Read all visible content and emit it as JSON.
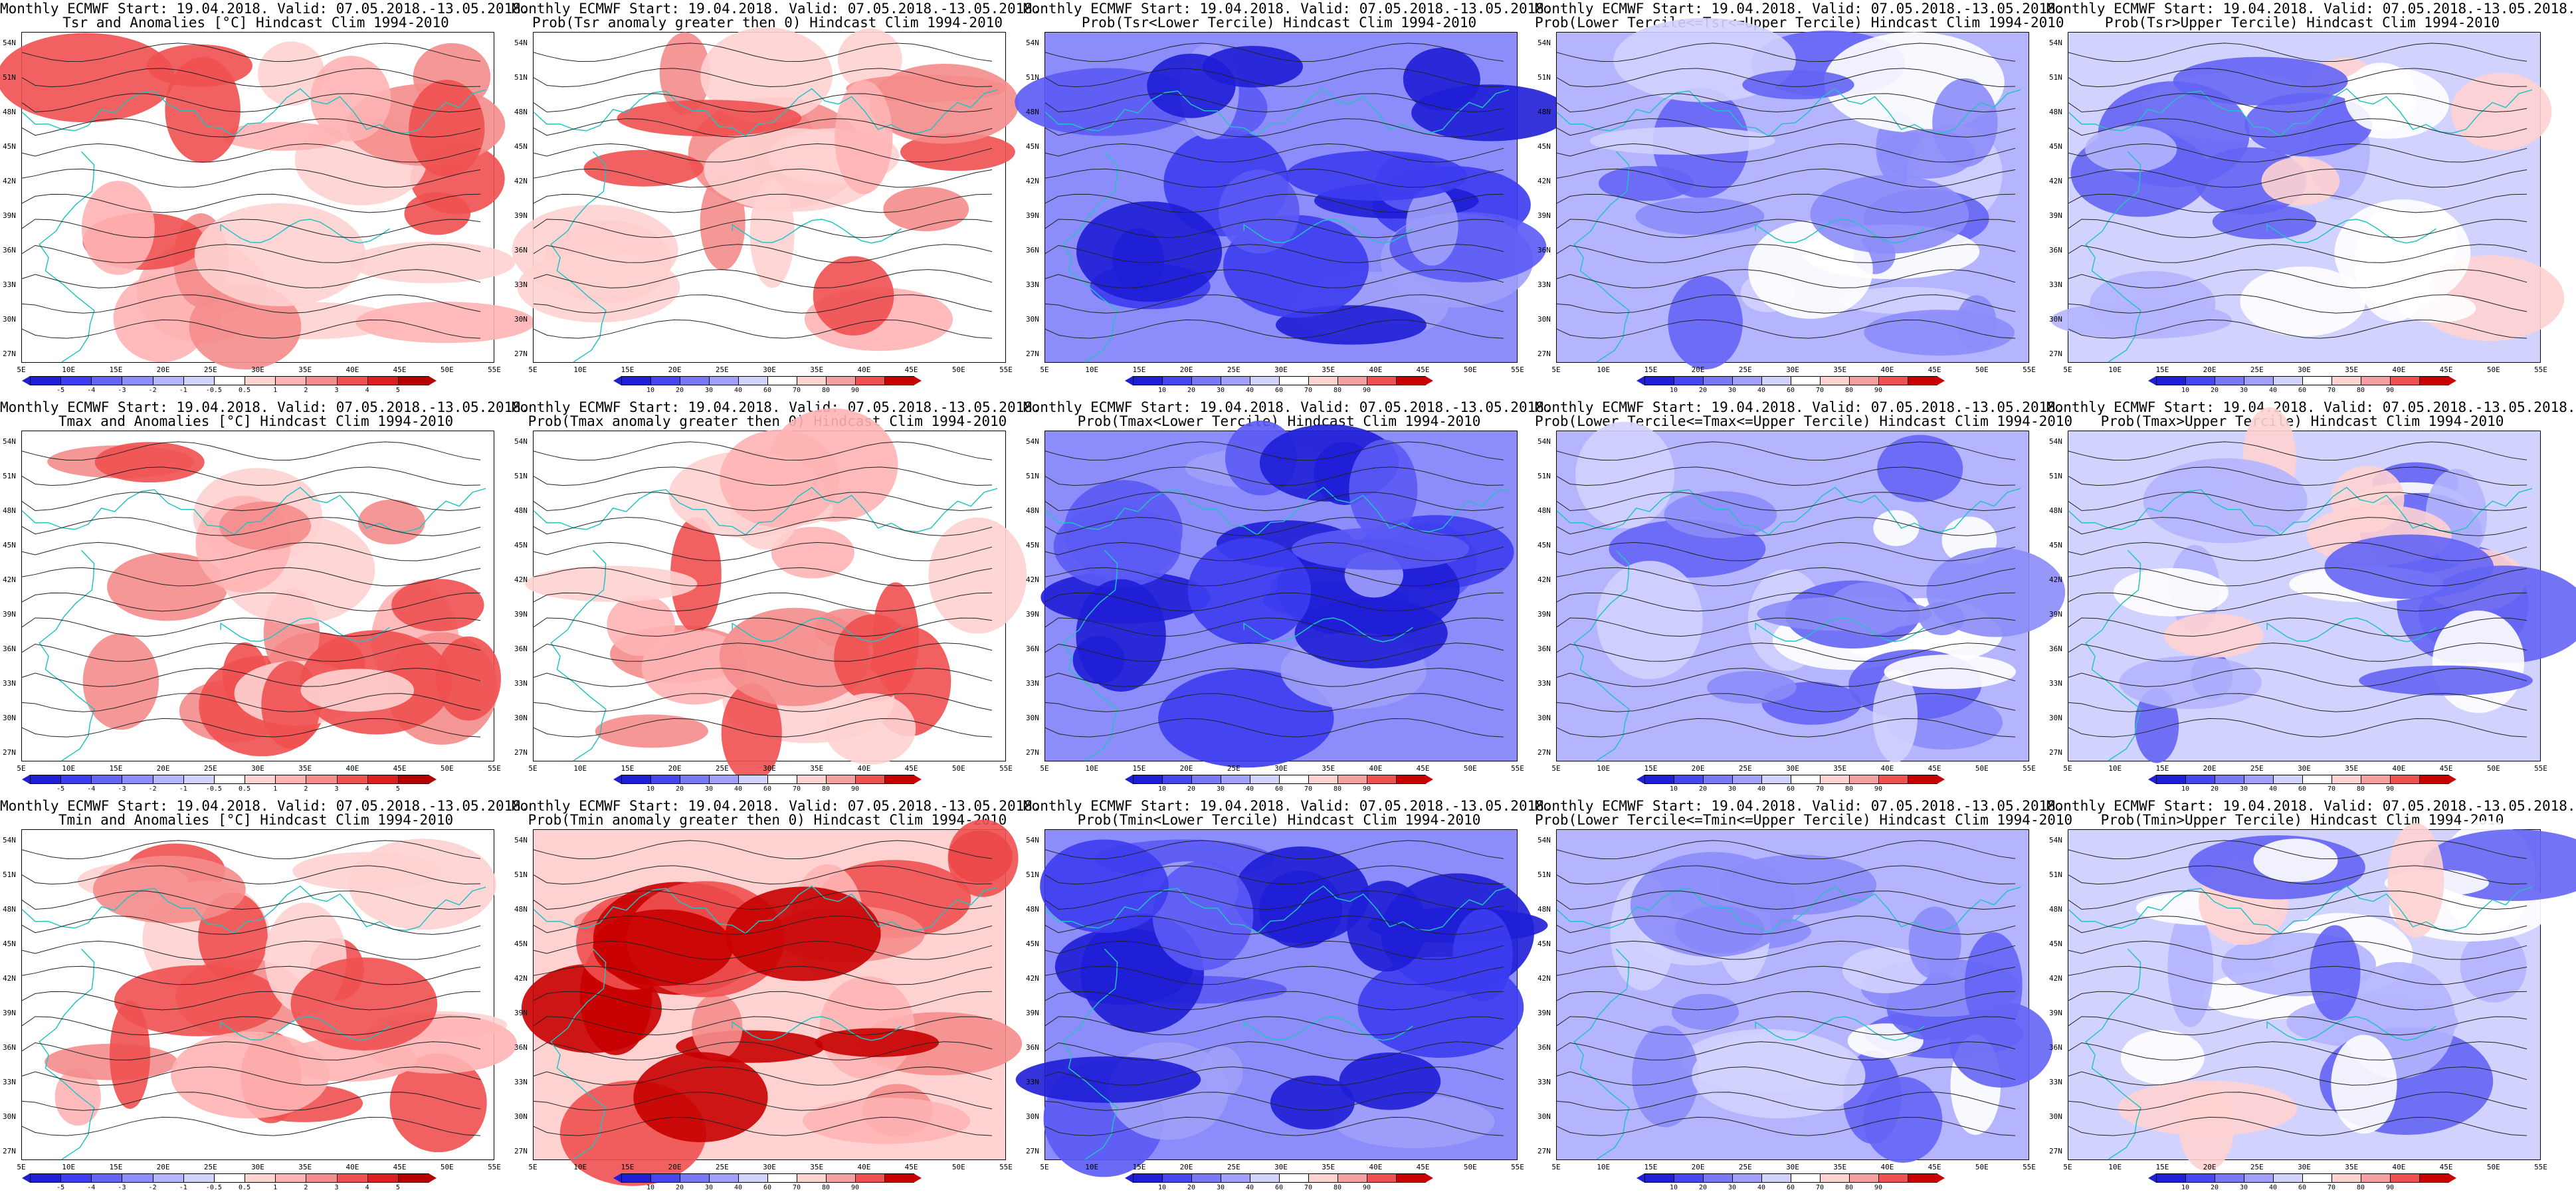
{
  "figure": {
    "lat_labels": [
      "54N",
      "51N",
      "48N",
      "45N",
      "42N",
      "39N",
      "36N",
      "33N",
      "30N",
      "27N"
    ],
    "lon_labels": [
      "5E",
      "10E",
      "15E",
      "20E",
      "25E",
      "30E",
      "35E",
      "40E",
      "45E",
      "50E",
      "55E"
    ],
    "anom_colorbar": {
      "labels": [
        "-5",
        "-4",
        "-3",
        "-2",
        "-1",
        "-0.5",
        "0.5",
        "1",
        "2",
        "3",
        "4",
        "5"
      ],
      "colors": [
        "#1e1ed6",
        "#3c3cf0",
        "#6464f5",
        "#8c8cfa",
        "#b4b4ff",
        "#d2d2ff",
        "#ffffff",
        "#ffd2d2",
        "#ffb4b4",
        "#f58c8c",
        "#f05050",
        "#dc1e1e",
        "#b40000"
      ]
    },
    "prob_colorbar": {
      "labels": [
        "10",
        "20",
        "30",
        "40",
        "60",
        "70",
        "80",
        "90"
      ],
      "colors": [
        "#1e1ed6",
        "#4646f0",
        "#7878f5",
        "#a0a0fa",
        "#d2d2ff",
        "#ffffff",
        "#ffd2d2",
        "#f5a0a0",
        "#f05050",
        "#c80000"
      ]
    },
    "panels": [
      {
        "title1": "Monthly ECMWF Start: 19.04.2018. Valid: 07.05.2018.-13.05.2018.",
        "title2": "Tsr and Anomalies [°C] Hindcast Clim 1994-2010",
        "kind": "anom",
        "tone": "red"
      },
      {
        "title1": "Monthly ECMWF Start: 19.04.2018. Valid: 07.05.2018.-13.05.2018.",
        "title2": "Prob(Tsr anomaly greater then 0) Hindcast Clim 1994-2010",
        "kind": "prob",
        "tone": "red"
      },
      {
        "title1": "Monthly ECMWF Start: 19.04.2018. Valid: 07.05.2018.-13.05.2018.",
        "title2": "Prob(Tsr<Lower Tercile) Hindcast Clim 1994-2010",
        "kind": "prob",
        "tone": "blue-strong"
      },
      {
        "title1": "Monthly ECMWF Start: 19.04.2018. Valid: 07.05.2018.-13.05.2018.",
        "title2": "Prob(Lower Tercile<=Tsr<=Upper Tercile) Hindcast Clim 1994-2010",
        "kind": "prob",
        "tone": "blue"
      },
      {
        "title1": "Monthly ECMWF Start: 19.04.2018. Valid: 07.05.2018.-13.05.2018.",
        "title2": "Prob(Tsr>Upper Tercile) Hindcast Clim 1994-2010",
        "kind": "prob",
        "tone": "mixed"
      },
      {
        "title1": "Monthly ECMWF Start: 19.04.2018. Valid: 07.05.2018.-13.05.2018.",
        "title2": "Tmax and Anomalies [°C] Hindcast Clim 1994-2010",
        "kind": "anom",
        "tone": "red"
      },
      {
        "title1": "Monthly ECMWF Start: 19.04.2018. Valid: 07.05.2018.-13.05.2018.",
        "title2": "Prob(Tmax anomaly greater then 0) Hindcast Clim 1994-2010",
        "kind": "prob",
        "tone": "red"
      },
      {
        "title1": "Monthly ECMWF Start: 19.04.2018. Valid: 07.05.2018.-13.05.2018.",
        "title2": "Prob(Tmax<Lower Tercile) Hindcast Clim 1994-2010",
        "kind": "prob",
        "tone": "blue-strong"
      },
      {
        "title1": "Monthly ECMWF Start: 19.04.2018. Valid: 07.05.2018.-13.05.2018.",
        "title2": "Prob(Lower Tercile<=Tmax<=Upper Tercile) Hindcast Clim 1994-2010",
        "kind": "prob",
        "tone": "blue"
      },
      {
        "title1": "Monthly ECMWF Start: 19.04.2018. Valid: 07.05.2018.-13.05.2018.",
        "title2": "Prob(Tmax>Upper Tercile) Hindcast Clim 1994-2010",
        "kind": "prob",
        "tone": "mixed"
      },
      {
        "title1": "Monthly ECMWF Start: 19.04.2018. Valid: 07.05.2018.-13.05.2018.",
        "title2": "Tmin and Anomalies [°C] Hindcast Clim 1994-2010",
        "kind": "anom",
        "tone": "red"
      },
      {
        "title1": "Monthly ECMWF Start: 19.04.2018. Valid: 07.05.2018.-13.05.2018.",
        "title2": "Prob(Tmin anomaly greater then 0) Hindcast Clim 1994-2010",
        "kind": "prob",
        "tone": "red-strong"
      },
      {
        "title1": "Monthly ECMWF Start: 19.04.2018. Valid: 07.05.2018.-13.05.2018.",
        "title2": "Prob(Tmin<Lower Tercile) Hindcast Clim 1994-2010",
        "kind": "prob",
        "tone": "blue-strong"
      },
      {
        "title1": "Monthly ECMWF Start: 19.04.2018. Valid: 07.05.2018.-13.05.2018.",
        "title2": "Prob(Lower Tercile<=Tmin<=Upper Tercile) Hindcast Clim 1994-2010",
        "kind": "prob",
        "tone": "blue"
      },
      {
        "title1": "Monthly ECMWF Start: 19.04.2018. Valid: 07.05.2018.-13.05.2018.",
        "title2": "Prob(Tmin>Upper Tercile) Hindcast Clim 1994-2010",
        "kind": "prob",
        "tone": "mixed"
      }
    ]
  }
}
